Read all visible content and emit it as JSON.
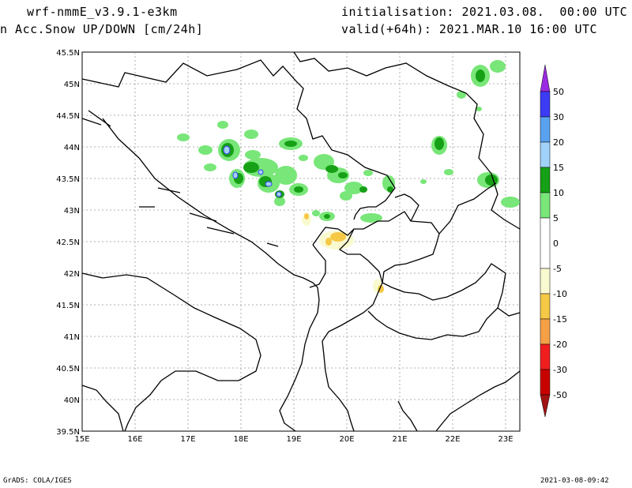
{
  "header": {
    "model": "wrf-nmmE_v3.9.1-e3km",
    "variable": "n Acc.Snow UP/DOWN [cm/24h]",
    "init": "initialisation: 2021.03.08.  00:00 UTC",
    "valid": "valid(+64h): 2021.MAR.10 16:00 UTC"
  },
  "footer": {
    "left": "GrADS: COLA/IGES",
    "right": "2021-03-08-09:42"
  },
  "map": {
    "lat_labels": [
      "45.5N",
      "45N",
      "44.5N",
      "44N",
      "43.5N",
      "43N",
      "42.5N",
      "42N",
      "41.5N",
      "41N",
      "40.5N",
      "40N",
      "39.5N"
    ],
    "lon_labels": [
      "15E",
      "16E",
      "17E",
      "18E",
      "19E",
      "20E",
      "21E",
      "22E",
      "23E"
    ]
  },
  "legend": {
    "labels": [
      "50",
      "30",
      "20",
      "15",
      "10",
      "5",
      "0",
      "-5",
      "-10",
      "-15",
      "-20",
      "-30",
      "-50"
    ],
    "colors": [
      "#9a2be0",
      "#3c3cf5",
      "#5aa2f0",
      "#a0d2fa",
      "#16a016",
      "#78e678",
      "#ffffff",
      "#fafad0",
      "#f5c846",
      "#f5a046",
      "#f01e1e",
      "#c80000",
      "#a01414"
    ]
  }
}
